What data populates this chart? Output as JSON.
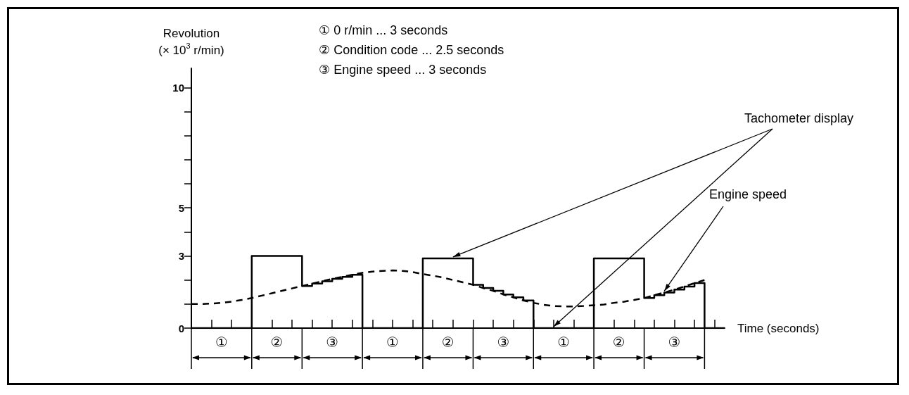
{
  "chart_data": {
    "type": "line",
    "xlabel": "Time (seconds)",
    "ylabel": "Revolution\n(× 10$^{3}$ r/min)",
    "subtitle": "① 0 r/min ... 3 seconds\n② Condition code ... 2.5 seconds\n③ Engine speed ... 3 seconds",
    "annotations": [
      "①",
      "②",
      "③",
      "①",
      "②",
      "③",
      "①",
      "②",
      "③"
    ],
    "categories": [
      null,
      null,
      null,
      null,
      null,
      null,
      null,
      null,
      null,
      null,
      null,
      null,
      null,
      null,
      null,
      null,
      null,
      null,
      null,
      null,
      null,
      null,
      null,
      null,
      null,
      null,
      null,
      null,
      null,
      null,
      null,
      null,
      null,
      null,
      null,
      null,
      null,
      null,
      null,
      null,
      null,
      null,
      null,
      null,
      null,
      null,
      null,
      null,
      null,
      null,
      null,
      null,
      null,
      null
    ],
    "ylim": [
      0,
      10.8
    ],
    "yticks": [
      0,
      {
        "value": 1,
        "label": null
      },
      {
        "value": 2,
        "label": null
      },
      3,
      {
        "value": 4,
        "label": null
      },
      5,
      {
        "value": 6,
        "label": null
      },
      {
        "value": 7,
        "label": null
      },
      {
        "value": 8,
        "label": null
      },
      {
        "value": 9,
        "label": null
      },
      10
    ],
    "tick_labels": "y",
    "legend": false,
    "marker": "none",
    "series": [
      {
        "name": "Engine speed",
        "color": "#000000",
        "line_style": "dashed",
        "values": [
          1.0,
          1.0,
          1.02,
          1.05,
          1.1,
          1.17,
          1.25,
          1.35,
          1.45,
          1.55,
          1.65,
          1.75,
          1.85,
          1.95,
          2.05,
          2.13,
          2.22,
          2.3,
          2.35,
          2.38,
          2.4,
          2.38,
          2.33,
          2.25,
          2.18,
          2.1,
          2.0,
          1.9,
          1.8,
          1.67,
          1.55,
          1.4,
          1.28,
          1.15,
          1.05,
          0.97,
          0.92,
          0.9,
          0.9,
          0.92,
          0.95,
          0.98,
          1.05,
          1.1,
          1.17,
          1.25,
          1.37,
          1.48,
          1.6,
          1.73,
          1.87,
          2.0,
          null,
          null
        ]
      },
      {
        "name": "Tachometer display",
        "type": "step",
        "color": "#000000",
        "line_style": "solid",
        "values": [
          0,
          0,
          0,
          0,
          0,
          0,
          3,
          3,
          3,
          3,
          3,
          1.75,
          1.85,
          1.95,
          2.05,
          2.13,
          2.22,
          0,
          0,
          0,
          0,
          0,
          0,
          2.9,
          2.9,
          2.9,
          2.9,
          2.9,
          1.8,
          1.67,
          1.55,
          1.4,
          1.28,
          1.15,
          0,
          0,
          0,
          0,
          0,
          0,
          2.9,
          2.9,
          2.9,
          2.9,
          2.9,
          1.25,
          1.37,
          1.48,
          1.6,
          1.73,
          1.87,
          0,
          0,
          0
        ]
      }
    ]
  }
}
